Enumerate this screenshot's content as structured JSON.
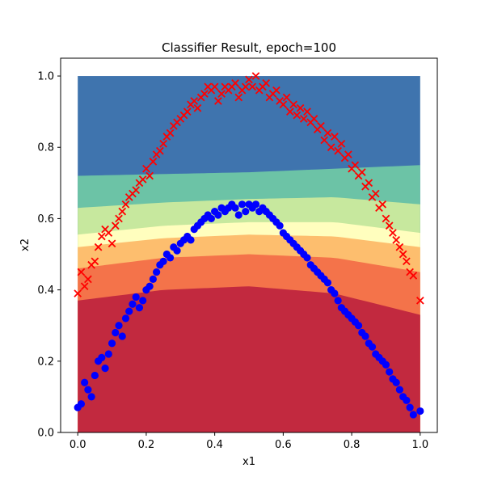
{
  "chart_data": {
    "type": "scatter",
    "title": "Classifier Result, epoch=100",
    "xlabel": "x1",
    "ylabel": "x2",
    "xlim": [
      -0.05,
      1.05
    ],
    "ylim": [
      0.0,
      1.05
    ],
    "xticks": [
      "0.0",
      "0.2",
      "0.4",
      "0.6",
      "0.8",
      "1.0"
    ],
    "yticks": [
      "0.0",
      "0.2",
      "0.4",
      "0.6",
      "0.8",
      "1.0"
    ],
    "grid": false,
    "legend": "none",
    "decision_regions": {
      "x_range": [
        0.0,
        1.0
      ],
      "y_range": [
        0.0,
        1.0
      ],
      "color_order_bottom_to_top": [
        "#c2293f",
        "#f4734a",
        "#fdbe6e",
        "#fffebe",
        "#c7e89e",
        "#6cc3a6",
        "#3f74ae"
      ],
      "boundary_curves": [
        {
          "x": [
            0.0,
            0.25,
            0.5,
            0.75,
            1.0
          ],
          "y": [
            0.37,
            0.4,
            0.41,
            0.39,
            0.33
          ]
        },
        {
          "x": [
            0.0,
            0.25,
            0.5,
            0.75,
            1.0
          ],
          "y": [
            0.46,
            0.49,
            0.5,
            0.49,
            0.45
          ]
        },
        {
          "x": [
            0.0,
            0.25,
            0.5,
            0.75,
            1.0
          ],
          "y": [
            0.52,
            0.545,
            0.555,
            0.55,
            0.52
          ]
        },
        {
          "x": [
            0.0,
            0.25,
            0.5,
            0.75,
            1.0
          ],
          "y": [
            0.555,
            0.58,
            0.59,
            0.59,
            0.56
          ]
        },
        {
          "x": [
            0.0,
            0.25,
            0.5,
            0.75,
            1.0
          ],
          "y": [
            0.63,
            0.645,
            0.655,
            0.66,
            0.64
          ]
        },
        {
          "x": [
            0.0,
            0.25,
            0.5,
            0.75,
            1.0
          ],
          "y": [
            0.72,
            0.725,
            0.73,
            0.74,
            0.75
          ]
        }
      ]
    },
    "series": [
      {
        "marker": "x",
        "color": "#ff0000",
        "points": [
          [
            0.0,
            0.39
          ],
          [
            0.01,
            0.45
          ],
          [
            0.02,
            0.41
          ],
          [
            0.03,
            0.43
          ],
          [
            0.04,
            0.47
          ],
          [
            0.05,
            0.48
          ],
          [
            0.06,
            0.52
          ],
          [
            0.07,
            0.55
          ],
          [
            0.08,
            0.57
          ],
          [
            0.09,
            0.56
          ],
          [
            0.1,
            0.53
          ],
          [
            0.11,
            0.58
          ],
          [
            0.12,
            0.6
          ],
          [
            0.13,
            0.62
          ],
          [
            0.14,
            0.64
          ],
          [
            0.15,
            0.66
          ],
          [
            0.16,
            0.67
          ],
          [
            0.17,
            0.68
          ],
          [
            0.18,
            0.7
          ],
          [
            0.19,
            0.71
          ],
          [
            0.2,
            0.74
          ],
          [
            0.21,
            0.72
          ],
          [
            0.22,
            0.76
          ],
          [
            0.23,
            0.78
          ],
          [
            0.24,
            0.79
          ],
          [
            0.25,
            0.81
          ],
          [
            0.26,
            0.83
          ],
          [
            0.27,
            0.84
          ],
          [
            0.28,
            0.86
          ],
          [
            0.29,
            0.87
          ],
          [
            0.3,
            0.88
          ],
          [
            0.31,
            0.89
          ],
          [
            0.32,
            0.9
          ],
          [
            0.33,
            0.92
          ],
          [
            0.34,
            0.93
          ],
          [
            0.35,
            0.91
          ],
          [
            0.36,
            0.94
          ],
          [
            0.37,
            0.95
          ],
          [
            0.38,
            0.97
          ],
          [
            0.39,
            0.96
          ],
          [
            0.4,
            0.97
          ],
          [
            0.41,
            0.93
          ],
          [
            0.42,
            0.95
          ],
          [
            0.43,
            0.97
          ],
          [
            0.44,
            0.96
          ],
          [
            0.45,
            0.97
          ],
          [
            0.46,
            0.98
          ],
          [
            0.47,
            0.94
          ],
          [
            0.48,
            0.96
          ],
          [
            0.49,
            0.97
          ],
          [
            0.5,
            0.99
          ],
          [
            0.51,
            0.97
          ],
          [
            0.52,
            1.0
          ],
          [
            0.53,
            0.96
          ],
          [
            0.54,
            0.97
          ],
          [
            0.55,
            0.98
          ],
          [
            0.56,
            0.94
          ],
          [
            0.57,
            0.95
          ],
          [
            0.58,
            0.96
          ],
          [
            0.59,
            0.93
          ],
          [
            0.6,
            0.92
          ],
          [
            0.61,
            0.94
          ],
          [
            0.62,
            0.9
          ],
          [
            0.63,
            0.92
          ],
          [
            0.64,
            0.89
          ],
          [
            0.65,
            0.91
          ],
          [
            0.66,
            0.88
          ],
          [
            0.67,
            0.9
          ],
          [
            0.68,
            0.87
          ],
          [
            0.69,
            0.88
          ],
          [
            0.7,
            0.85
          ],
          [
            0.71,
            0.86
          ],
          [
            0.72,
            0.82
          ],
          [
            0.73,
            0.84
          ],
          [
            0.74,
            0.8
          ],
          [
            0.75,
            0.83
          ],
          [
            0.76,
            0.79
          ],
          [
            0.77,
            0.81
          ],
          [
            0.78,
            0.77
          ],
          [
            0.79,
            0.78
          ],
          [
            0.8,
            0.74
          ],
          [
            0.81,
            0.75
          ],
          [
            0.82,
            0.72
          ],
          [
            0.83,
            0.73
          ],
          [
            0.84,
            0.69
          ],
          [
            0.85,
            0.7
          ],
          [
            0.86,
            0.66
          ],
          [
            0.87,
            0.67
          ],
          [
            0.88,
            0.63
          ],
          [
            0.89,
            0.64
          ],
          [
            0.9,
            0.6
          ],
          [
            0.91,
            0.58
          ],
          [
            0.92,
            0.56
          ],
          [
            0.93,
            0.54
          ],
          [
            0.94,
            0.52
          ],
          [
            0.95,
            0.5
          ],
          [
            0.96,
            0.48
          ],
          [
            0.97,
            0.45
          ],
          [
            0.98,
            0.44
          ],
          [
            1.0,
            0.37
          ]
        ]
      },
      {
        "marker": "o",
        "color": "#0000ff",
        "points": [
          [
            0.0,
            0.07
          ],
          [
            0.01,
            0.08
          ],
          [
            0.02,
            0.14
          ],
          [
            0.03,
            0.12
          ],
          [
            0.04,
            0.1
          ],
          [
            0.05,
            0.16
          ],
          [
            0.06,
            0.2
          ],
          [
            0.07,
            0.21
          ],
          [
            0.08,
            0.18
          ],
          [
            0.09,
            0.22
          ],
          [
            0.1,
            0.25
          ],
          [
            0.11,
            0.28
          ],
          [
            0.12,
            0.3
          ],
          [
            0.13,
            0.27
          ],
          [
            0.14,
            0.32
          ],
          [
            0.15,
            0.34
          ],
          [
            0.16,
            0.36
          ],
          [
            0.17,
            0.38
          ],
          [
            0.18,
            0.35
          ],
          [
            0.19,
            0.37
          ],
          [
            0.2,
            0.4
          ],
          [
            0.21,
            0.41
          ],
          [
            0.22,
            0.43
          ],
          [
            0.23,
            0.45
          ],
          [
            0.24,
            0.47
          ],
          [
            0.25,
            0.48
          ],
          [
            0.26,
            0.5
          ],
          [
            0.27,
            0.49
          ],
          [
            0.28,
            0.52
          ],
          [
            0.29,
            0.51
          ],
          [
            0.3,
            0.53
          ],
          [
            0.31,
            0.54
          ],
          [
            0.32,
            0.55
          ],
          [
            0.33,
            0.54
          ],
          [
            0.34,
            0.57
          ],
          [
            0.35,
            0.58
          ],
          [
            0.36,
            0.59
          ],
          [
            0.37,
            0.6
          ],
          [
            0.38,
            0.61
          ],
          [
            0.39,
            0.6
          ],
          [
            0.4,
            0.62
          ],
          [
            0.41,
            0.61
          ],
          [
            0.42,
            0.63
          ],
          [
            0.43,
            0.62
          ],
          [
            0.44,
            0.63
          ],
          [
            0.45,
            0.64
          ],
          [
            0.46,
            0.63
          ],
          [
            0.47,
            0.61
          ],
          [
            0.48,
            0.64
          ],
          [
            0.49,
            0.62
          ],
          [
            0.5,
            0.64
          ],
          [
            0.51,
            0.63
          ],
          [
            0.52,
            0.64
          ],
          [
            0.53,
            0.62
          ],
          [
            0.54,
            0.63
          ],
          [
            0.55,
            0.62
          ],
          [
            0.56,
            0.61
          ],
          [
            0.57,
            0.6
          ],
          [
            0.58,
            0.59
          ],
          [
            0.59,
            0.58
          ],
          [
            0.6,
            0.56
          ],
          [
            0.61,
            0.55
          ],
          [
            0.62,
            0.54
          ],
          [
            0.63,
            0.53
          ],
          [
            0.64,
            0.52
          ],
          [
            0.65,
            0.51
          ],
          [
            0.66,
            0.5
          ],
          [
            0.67,
            0.49
          ],
          [
            0.68,
            0.47
          ],
          [
            0.69,
            0.46
          ],
          [
            0.7,
            0.45
          ],
          [
            0.71,
            0.44
          ],
          [
            0.72,
            0.43
          ],
          [
            0.73,
            0.42
          ],
          [
            0.74,
            0.4
          ],
          [
            0.75,
            0.39
          ],
          [
            0.76,
            0.37
          ],
          [
            0.77,
            0.35
          ],
          [
            0.78,
            0.34
          ],
          [
            0.79,
            0.33
          ],
          [
            0.8,
            0.32
          ],
          [
            0.81,
            0.31
          ],
          [
            0.82,
            0.3
          ],
          [
            0.83,
            0.28
          ],
          [
            0.84,
            0.27
          ],
          [
            0.85,
            0.25
          ],
          [
            0.86,
            0.24
          ],
          [
            0.87,
            0.22
          ],
          [
            0.88,
            0.21
          ],
          [
            0.89,
            0.2
          ],
          [
            0.9,
            0.19
          ],
          [
            0.91,
            0.17
          ],
          [
            0.92,
            0.15
          ],
          [
            0.93,
            0.14
          ],
          [
            0.94,
            0.12
          ],
          [
            0.95,
            0.1
          ],
          [
            0.96,
            0.09
          ],
          [
            0.97,
            0.07
          ],
          [
            0.98,
            0.05
          ],
          [
            1.0,
            0.06
          ]
        ]
      }
    ]
  }
}
